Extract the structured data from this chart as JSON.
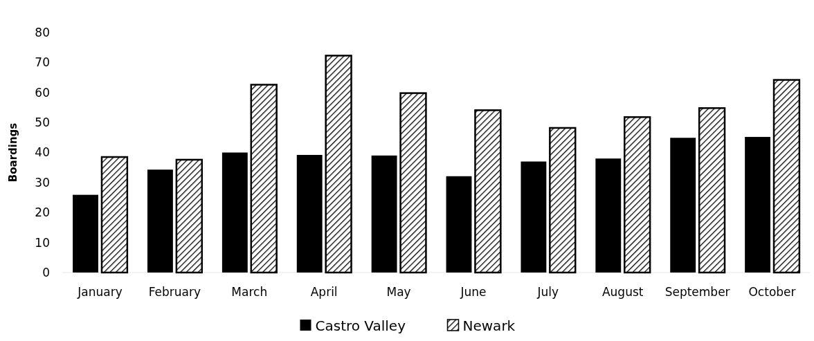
{
  "chart_data": {
    "type": "bar",
    "ylabel": "Boardings",
    "categories": [
      "January",
      "February",
      "March",
      "April",
      "May",
      "June",
      "July",
      "August",
      "September",
      "October"
    ],
    "series": [
      {
        "name": "Castro Valley",
        "color": "#000000",
        "values": [
          25.9,
          34.3,
          40.0,
          39.2,
          39.0,
          32.1,
          37.0,
          38.0,
          44.9,
          45.2
        ]
      },
      {
        "name": "Newark",
        "color": "#000000",
        "values": [
          38.5,
          37.6,
          62.6,
          72.3,
          59.8,
          54.1,
          48.2,
          51.8,
          54.8,
          64.2
        ]
      }
    ],
    "ylim": [
      0,
      80
    ],
    "yticks": [
      0,
      10,
      20,
      30,
      40,
      50,
      60,
      70,
      80
    ],
    "grid": false,
    "legend": "bottom"
  }
}
